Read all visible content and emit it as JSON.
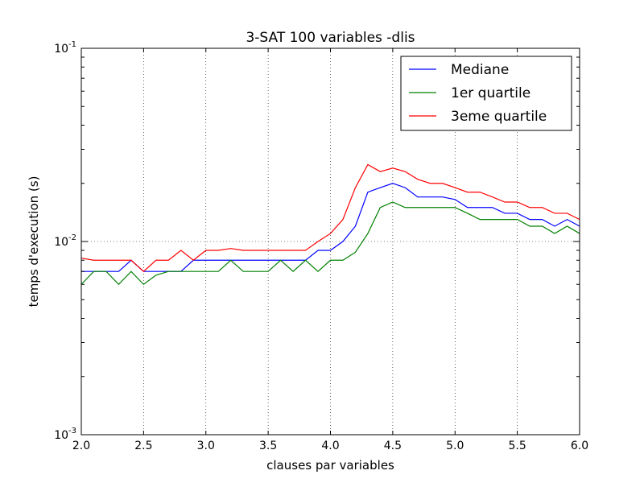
{
  "chart_data": {
    "type": "line",
    "title": "3-SAT 100 variables -dlis",
    "xlabel": "clauses par variables",
    "ylabel": "temps d'execution (s)",
    "xlim": [
      2.0,
      6.0
    ],
    "ylim": [
      0.001,
      0.1
    ],
    "yscale": "log",
    "grid": true,
    "legend_position": "top-right",
    "x_ticks": [
      {
        "value": 2.0,
        "label": "2.0"
      },
      {
        "value": 2.5,
        "label": "2.5"
      },
      {
        "value": 3.0,
        "label": "3.0"
      },
      {
        "value": 3.5,
        "label": "3.5"
      },
      {
        "value": 4.0,
        "label": "4.0"
      },
      {
        "value": 4.5,
        "label": "4.5"
      },
      {
        "value": 5.0,
        "label": "5.0"
      },
      {
        "value": 5.5,
        "label": "5.5"
      },
      {
        "value": 6.0,
        "label": "6.0"
      }
    ],
    "y_ticks": [
      {
        "value": 0.001,
        "base": "10",
        "exp": "-3"
      },
      {
        "value": 0.01,
        "base": "10",
        "exp": "-2"
      },
      {
        "value": 0.1,
        "base": "10",
        "exp": "-1"
      }
    ],
    "x": [
      2.0,
      2.1,
      2.2,
      2.3,
      2.4,
      2.5,
      2.6,
      2.7,
      2.8,
      2.9,
      3.0,
      3.1,
      3.2,
      3.3,
      3.4,
      3.5,
      3.6,
      3.7,
      3.8,
      3.9,
      4.0,
      4.1,
      4.2,
      4.3,
      4.4,
      4.5,
      4.6,
      4.7,
      4.8,
      4.9,
      5.0,
      5.1,
      5.2,
      5.3,
      5.4,
      5.5,
      5.6,
      5.7,
      5.8,
      5.9,
      6.0
    ],
    "series": [
      {
        "name": "Mediane",
        "color": "#0000ff",
        "values": [
          0.007,
          0.007,
          0.007,
          0.007,
          0.008,
          0.007,
          0.007,
          0.007,
          0.007,
          0.008,
          0.008,
          0.008,
          0.008,
          0.008,
          0.008,
          0.008,
          0.008,
          0.008,
          0.008,
          0.009,
          0.009,
          0.01,
          0.012,
          0.018,
          0.019,
          0.02,
          0.019,
          0.017,
          0.017,
          0.017,
          0.0165,
          0.015,
          0.015,
          0.015,
          0.014,
          0.014,
          0.013,
          0.013,
          0.012,
          0.013,
          0.012
        ]
      },
      {
        "name": "1er quartile",
        "color": "#008000",
        "values": [
          0.006,
          0.007,
          0.007,
          0.006,
          0.007,
          0.006,
          0.0067,
          0.007,
          0.007,
          0.007,
          0.007,
          0.007,
          0.008,
          0.007,
          0.007,
          0.007,
          0.008,
          0.007,
          0.008,
          0.007,
          0.008,
          0.008,
          0.0088,
          0.011,
          0.015,
          0.016,
          0.015,
          0.015,
          0.015,
          0.015,
          0.015,
          0.014,
          0.013,
          0.013,
          0.013,
          0.013,
          0.012,
          0.012,
          0.011,
          0.012,
          0.011
        ]
      },
      {
        "name": "3eme quartile",
        "color": "#ff0000",
        "values": [
          0.0082,
          0.008,
          0.008,
          0.008,
          0.008,
          0.007,
          0.008,
          0.008,
          0.009,
          0.008,
          0.009,
          0.009,
          0.0092,
          0.009,
          0.009,
          0.009,
          0.009,
          0.009,
          0.009,
          0.01,
          0.011,
          0.013,
          0.019,
          0.025,
          0.023,
          0.024,
          0.023,
          0.021,
          0.02,
          0.02,
          0.019,
          0.018,
          0.018,
          0.017,
          0.016,
          0.016,
          0.015,
          0.015,
          0.014,
          0.014,
          0.013
        ]
      }
    ]
  }
}
